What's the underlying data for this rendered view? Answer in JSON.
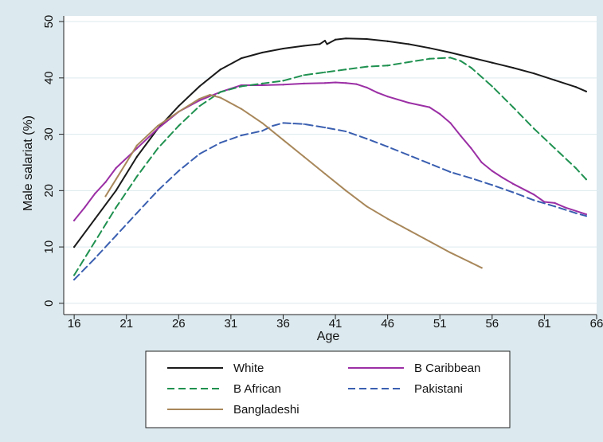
{
  "chart_data": {
    "type": "line",
    "title": "",
    "xlabel": "Age",
    "ylabel": "Male salariat (%)",
    "xlim": [
      15,
      66
    ],
    "ylim": [
      -2,
      51
    ],
    "xticks": [
      16,
      21,
      26,
      31,
      36,
      41,
      46,
      51,
      56,
      61,
      66
    ],
    "yticks": [
      0,
      10,
      20,
      30,
      40,
      50
    ],
    "grid": "horizontal",
    "legend_position": "bottom",
    "colors": {
      "background": "#dce9ee",
      "plot_area": "#ffffff",
      "grid": "#dce9ee"
    },
    "series": [
      {
        "name": "White",
        "color": "#1a1a1a",
        "dash": "solid",
        "x": [
          16,
          18,
          20,
          22,
          24,
          26,
          28,
          30,
          32,
          34,
          36,
          38,
          39.5,
          40,
          40.2,
          41,
          42,
          44,
          46,
          48,
          50,
          52,
          54,
          56,
          58,
          60,
          62,
          64,
          65
        ],
        "y": [
          10,
          15,
          20,
          26,
          31,
          35,
          38.5,
          41.5,
          43.5,
          44.5,
          45.2,
          45.7,
          46,
          46.6,
          46,
          46.8,
          47,
          46.9,
          46.5,
          46,
          45.3,
          44.5,
          43.6,
          42.7,
          41.8,
          40.8,
          39.6,
          38.4,
          37.6
        ]
      },
      {
        "name": "B Caribbean",
        "color": "#9b2fa5",
        "dash": "solid",
        "x": [
          16,
          17,
          18,
          19,
          20,
          22,
          24,
          26,
          28,
          30,
          32,
          34,
          36,
          38,
          40,
          41,
          42,
          43,
          44,
          45,
          46,
          48,
          50,
          51,
          52,
          53,
          54,
          55,
          56,
          57,
          58,
          60,
          61,
          62,
          63,
          65
        ],
        "y": [
          14.7,
          17,
          19.5,
          21.5,
          24,
          27.5,
          31,
          34,
          36,
          37.5,
          38.7,
          38.7,
          38.8,
          39,
          39.1,
          39.2,
          39.1,
          38.9,
          38.3,
          37.4,
          36.7,
          35.6,
          34.8,
          33.6,
          32,
          29.7,
          27.5,
          25,
          23.5,
          22.3,
          21.2,
          19.3,
          18,
          17.8,
          17,
          15.8
        ]
      },
      {
        "name": "B African",
        "color": "#1f9150",
        "dash": "dashed",
        "x": [
          16,
          18,
          20,
          22,
          24,
          26,
          28,
          30,
          32,
          34,
          36,
          38,
          40,
          42,
          44,
          46,
          48,
          50,
          52,
          53,
          54,
          56,
          58,
          60,
          62,
          64,
          65
        ],
        "y": [
          5,
          11,
          17,
          22.5,
          27.5,
          31.5,
          35,
          37.5,
          38.5,
          39,
          39.5,
          40.5,
          41,
          41.5,
          42,
          42.2,
          42.8,
          43.4,
          43.6,
          43,
          41.8,
          38.5,
          34.8,
          31,
          27.5,
          24,
          22
        ]
      },
      {
        "name": "Pakistani",
        "color": "#3a5fb0",
        "dash": "dashed",
        "x": [
          16,
          18,
          20,
          22,
          24,
          26,
          28,
          30,
          32,
          34,
          35,
          36,
          37,
          38,
          40,
          42,
          44,
          46,
          48,
          50,
          52,
          54,
          56,
          58,
          60,
          62,
          64,
          65
        ],
        "y": [
          4.2,
          8,
          12,
          16,
          20,
          23.5,
          26.5,
          28.5,
          29.8,
          30.6,
          31.5,
          32,
          31.9,
          31.8,
          31.2,
          30.5,
          29.2,
          27.8,
          26.3,
          24.8,
          23.3,
          22.2,
          21,
          19.7,
          18.3,
          17.2,
          16,
          15.5
        ]
      },
      {
        "name": "Bangladeshi",
        "color": "#a8875a",
        "dash": "solid",
        "x": [
          19,
          20,
          21,
          22,
          24,
          26,
          28,
          29,
          30,
          32,
          34,
          36,
          38,
          40,
          42,
          44,
          46,
          48,
          50,
          52,
          54,
          55
        ],
        "y": [
          19,
          22,
          25,
          28,
          31.5,
          34,
          36.3,
          37,
          36.5,
          34.5,
          32,
          29,
          26,
          23,
          20,
          17.2,
          15,
          13,
          11,
          9,
          7.2,
          6.3
        ]
      }
    ]
  }
}
